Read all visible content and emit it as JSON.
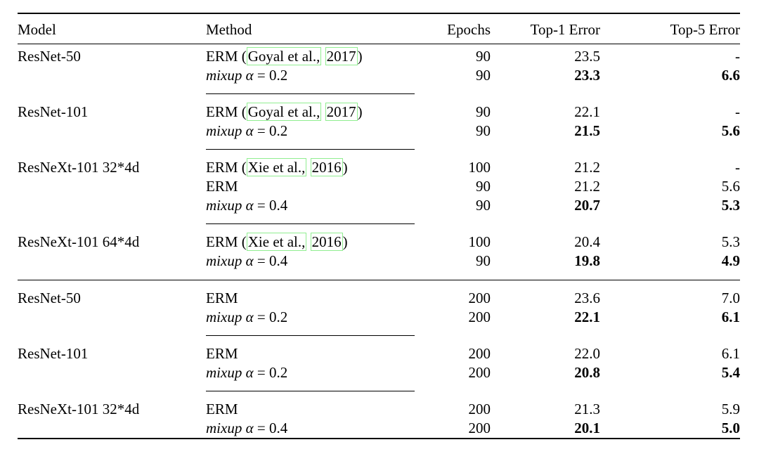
{
  "page": {
    "background": "#ffffff",
    "text_color": "#000000",
    "link_box_color": "#90ee90"
  },
  "table": {
    "headers": [
      "Model",
      "Method",
      "Epochs",
      "Top-1 Error",
      "Top-5 Error"
    ],
    "sections": [
      {
        "groups": [
          {
            "model": "ResNet-50",
            "rows": [
              {
                "method": [
                  {
                    "t": "ERM ("
                  },
                  {
                    "t": "Goyal et al.,",
                    "link": true
                  },
                  {
                    "t": " "
                  },
                  {
                    "t": "2017",
                    "link": true
                  },
                  {
                    "t": ")"
                  }
                ],
                "epochs": "90",
                "top1": "23.5",
                "top5": "-",
                "bold_errors": false
              },
              {
                "method": [
                  {
                    "t": "mixup ",
                    "italic": true
                  },
                  {
                    "t": "α",
                    "italic": true
                  },
                  {
                    "t": " = 0.2"
                  }
                ],
                "epochs": "90",
                "top1": "23.3",
                "top5": "6.6",
                "bold_errors": true
              }
            ]
          },
          {
            "model": "ResNet-101",
            "rows": [
              {
                "method": [
                  {
                    "t": "ERM ("
                  },
                  {
                    "t": "Goyal et al.,",
                    "link": true
                  },
                  {
                    "t": " "
                  },
                  {
                    "t": "2017",
                    "link": true
                  },
                  {
                    "t": ")"
                  }
                ],
                "epochs": "90",
                "top1": "22.1",
                "top5": "-",
                "bold_errors": false
              },
              {
                "method": [
                  {
                    "t": "mixup ",
                    "italic": true
                  },
                  {
                    "t": "α",
                    "italic": true
                  },
                  {
                    "t": " = 0.2"
                  }
                ],
                "epochs": "90",
                "top1": "21.5",
                "top5": "5.6",
                "bold_errors": true
              }
            ]
          },
          {
            "model": "ResNeXt-101 32*4d",
            "rows": [
              {
                "method": [
                  {
                    "t": "ERM ("
                  },
                  {
                    "t": "Xie et al.,",
                    "link": true
                  },
                  {
                    "t": " "
                  },
                  {
                    "t": "2016",
                    "link": true
                  },
                  {
                    "t": ")"
                  }
                ],
                "epochs": "100",
                "top1": "21.2",
                "top5": "-",
                "bold_errors": false
              },
              {
                "method": [
                  {
                    "t": "ERM"
                  }
                ],
                "epochs": "90",
                "top1": "21.2",
                "top5": "5.6",
                "bold_errors": false
              },
              {
                "method": [
                  {
                    "t": "mixup ",
                    "italic": true
                  },
                  {
                    "t": "α",
                    "italic": true
                  },
                  {
                    "t": " = 0.4"
                  }
                ],
                "epochs": "90",
                "top1": "20.7",
                "top5": "5.3",
                "bold_errors": true
              }
            ]
          },
          {
            "model": "ResNeXt-101 64*4d",
            "rows": [
              {
                "method": [
                  {
                    "t": "ERM ("
                  },
                  {
                    "t": "Xie et al.,",
                    "link": true
                  },
                  {
                    "t": " "
                  },
                  {
                    "t": "2016",
                    "link": true
                  },
                  {
                    "t": ")"
                  }
                ],
                "epochs": "100",
                "top1": "20.4",
                "top5": "5.3",
                "bold_errors": false
              },
              {
                "method": [
                  {
                    "t": "mixup ",
                    "italic": true
                  },
                  {
                    "t": "α",
                    "italic": true
                  },
                  {
                    "t": " = 0.4"
                  }
                ],
                "epochs": "90",
                "top1": "19.8",
                "top5": "4.9",
                "bold_errors": true
              }
            ]
          }
        ]
      },
      {
        "groups": [
          {
            "model": "ResNet-50",
            "rows": [
              {
                "method": [
                  {
                    "t": "ERM"
                  }
                ],
                "epochs": "200",
                "top1": "23.6",
                "top5": "7.0",
                "bold_errors": false
              },
              {
                "method": [
                  {
                    "t": "mixup ",
                    "italic": true
                  },
                  {
                    "t": "α",
                    "italic": true
                  },
                  {
                    "t": " = 0.2"
                  }
                ],
                "epochs": "200",
                "top1": "22.1",
                "top5": "6.1",
                "bold_errors": true
              }
            ]
          },
          {
            "model": "ResNet-101",
            "rows": [
              {
                "method": [
                  {
                    "t": "ERM"
                  }
                ],
                "epochs": "200",
                "top1": "22.0",
                "top5": "6.1",
                "bold_errors": false
              },
              {
                "method": [
                  {
                    "t": "mixup ",
                    "italic": true
                  },
                  {
                    "t": "α",
                    "italic": true
                  },
                  {
                    "t": " = 0.2"
                  }
                ],
                "epochs": "200",
                "top1": "20.8",
                "top5": "5.4",
                "bold_errors": true
              }
            ]
          },
          {
            "model": "ResNeXt-101 32*4d",
            "rows": [
              {
                "method": [
                  {
                    "t": "ERM"
                  }
                ],
                "epochs": "200",
                "top1": "21.3",
                "top5": "5.9",
                "bold_errors": false
              },
              {
                "method": [
                  {
                    "t": "mixup ",
                    "italic": true
                  },
                  {
                    "t": "α",
                    "italic": true
                  },
                  {
                    "t": " = 0.4"
                  }
                ],
                "epochs": "200",
                "top1": "20.1",
                "top5": "5.0",
                "bold_errors": true
              }
            ]
          }
        ]
      }
    ]
  }
}
